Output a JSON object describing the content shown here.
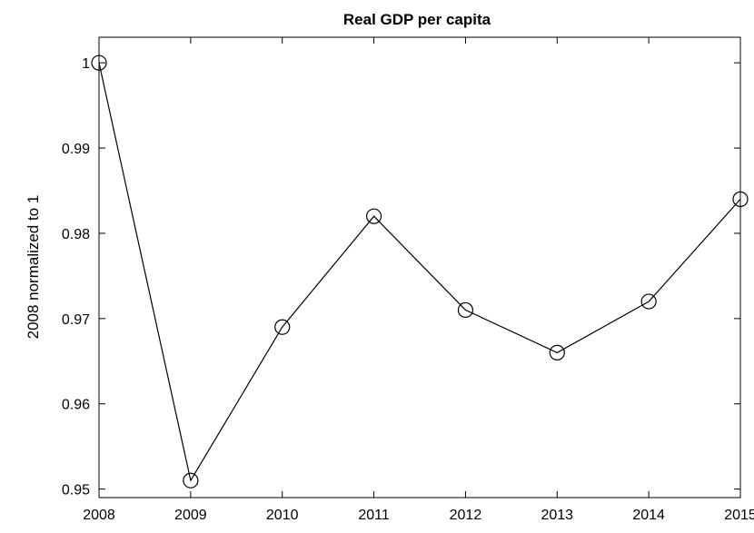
{
  "chart_data": {
    "type": "line",
    "title": "Real GDP per capita",
    "xlabel": "",
    "ylabel": "2008 normalized to 1",
    "x": [
      2008,
      2009,
      2010,
      2011,
      2012,
      2013,
      2014,
      2015
    ],
    "series": [
      {
        "values": [
          1.0,
          0.951,
          0.969,
          0.982,
          0.971,
          0.966,
          0.972,
          0.984
        ],
        "color": "#000000",
        "marker": "circle"
      }
    ],
    "xlim": [
      2008,
      2015
    ],
    "ylim": [
      0.949,
      1.003
    ],
    "x_ticks": [
      "2008",
      "2009",
      "2010",
      "2011",
      "2012",
      "2013",
      "2014",
      "2015"
    ],
    "y_ticks": [
      "0.95",
      "0.96",
      "0.97",
      "0.98",
      "0.99",
      "1"
    ],
    "y_tick_values": [
      0.95,
      0.96,
      0.97,
      0.98,
      0.99,
      1.0
    ],
    "grid": false,
    "legend": "none"
  }
}
